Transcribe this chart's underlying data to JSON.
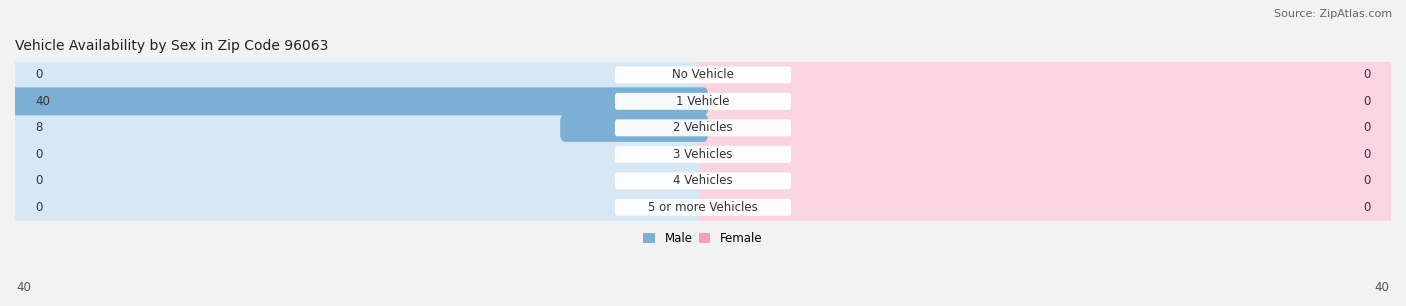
{
  "title": "Vehicle Availability by Sex in Zip Code 96063",
  "source": "Source: ZipAtlas.com",
  "categories": [
    "No Vehicle",
    "1 Vehicle",
    "2 Vehicles",
    "3 Vehicles",
    "4 Vehicles",
    "5 or more Vehicles"
  ],
  "male_values": [
    0,
    40,
    8,
    0,
    0,
    0
  ],
  "female_values": [
    0,
    0,
    0,
    0,
    0,
    0
  ],
  "male_color": "#7bafd4",
  "female_color": "#f4a0b8",
  "bar_bg_male": "#d6e8f5",
  "bar_bg_female": "#fad4e0",
  "max_value": 40,
  "fig_bg_color": "#f2f2f2",
  "row_bg_even": "#ffffff",
  "row_bg_odd": "#ebebf0",
  "label_color": "#333333",
  "title_fontsize": 10,
  "source_fontsize": 8,
  "value_fontsize": 8.5,
  "cat_fontsize": 8.5,
  "legend_fontsize": 8.5
}
